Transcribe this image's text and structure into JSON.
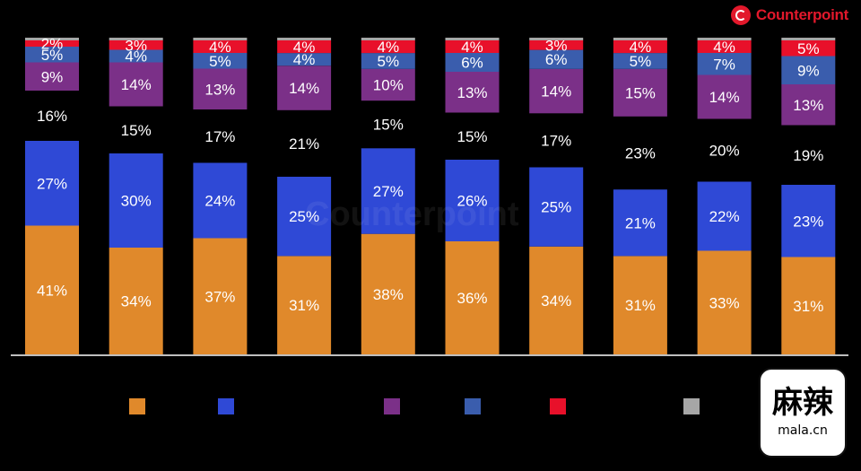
{
  "brand": {
    "name": "Counterpoint",
    "color": "#e2182b"
  },
  "watermark": {
    "text": "Counterpoint"
  },
  "stamp": {
    "glyph": "麻辣",
    "sub": "mala.cn"
  },
  "chart_data": {
    "type": "bar",
    "stacked": true,
    "percent_stacked": true,
    "categories": [
      "",
      "",
      "",
      "",
      "",
      "",
      "",
      "",
      "",
      ""
    ],
    "series": [
      {
        "color": "#e0892b",
        "values": [
          41,
          34,
          37,
          31,
          38,
          36,
          34,
          31,
          33,
          31
        ]
      },
      {
        "color": "#2f49d6",
        "values": [
          27,
          30,
          24,
          25,
          27,
          26,
          25,
          21,
          22,
          23
        ]
      },
      {
        "color": "#000000",
        "values": [
          16,
          15,
          17,
          21,
          15,
          15,
          17,
          23,
          20,
          19
        ]
      },
      {
        "color": "#7b3088",
        "values": [
          9,
          14,
          13,
          14,
          10,
          13,
          14,
          15,
          14,
          13
        ]
      },
      {
        "color": "#3a5dad",
        "values": [
          5,
          4,
          5,
          4,
          5,
          6,
          6,
          5,
          7,
          9
        ]
      },
      {
        "color": "#e8102a",
        "values": [
          2,
          3,
          4,
          4,
          4,
          4,
          3,
          4,
          4,
          5
        ]
      },
      {
        "color": "#a6a6a6",
        "values": [
          0,
          0,
          0,
          0,
          0,
          0,
          0,
          0,
          0,
          0
        ]
      }
    ],
    "legend": {
      "position": "bottom"
    },
    "ylim": [
      0,
      100
    ],
    "grid": false,
    "data_labels": true
  }
}
